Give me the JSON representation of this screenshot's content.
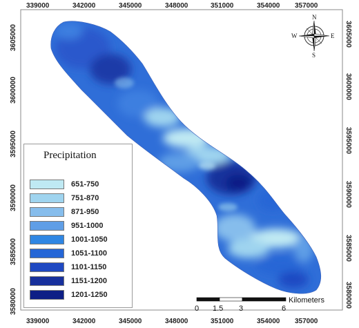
{
  "map": {
    "x_ticks": [
      "339000",
      "342000",
      "345000",
      "348000",
      "351000",
      "354000",
      "357000"
    ],
    "y_ticks": [
      "3605000",
      "3600000",
      "3595000",
      "3590000",
      "3585000",
      "3580000"
    ],
    "frame_color": "#888888",
    "region_color_main": "#2a58d6"
  },
  "legend": {
    "title": "Precipitation",
    "items": [
      {
        "label": "651-750",
        "color": "#bfe9f3"
      },
      {
        "label": "751-870",
        "color": "#9fd4ef"
      },
      {
        "label": "871-950",
        "color": "#86bdec"
      },
      {
        "label": "951-1000",
        "color": "#5f9ee6"
      },
      {
        "label": "1001-1050",
        "color": "#2f86e3"
      },
      {
        "label": "1051-1100",
        "color": "#2566d6"
      },
      {
        "label": "1101-1150",
        "color": "#1f49c2"
      },
      {
        "label": "1151-1200",
        "color": "#17309c"
      },
      {
        "label": "1201-1250",
        "color": "#0e1f86"
      }
    ]
  },
  "scale_bar": {
    "labels": [
      "0",
      "1.5",
      "3",
      "6"
    ],
    "unit": "Kilometers"
  },
  "compass": {
    "n": "N",
    "s": "S",
    "e": "E",
    "w": "W"
  }
}
